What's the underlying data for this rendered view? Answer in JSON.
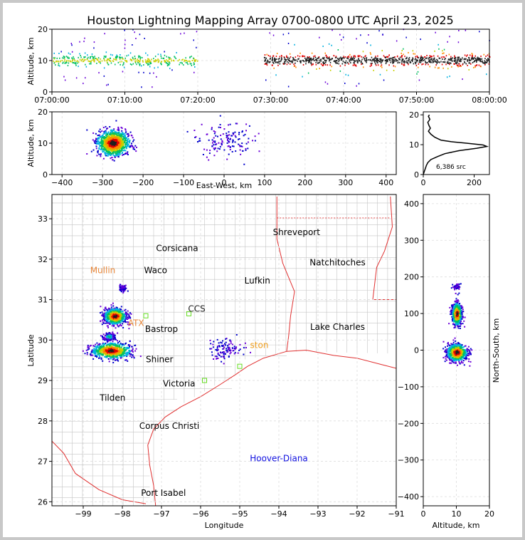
{
  "title": "Houston Lightning Mapping Array 0700-0800 UTC April 23, 2025",
  "chart_data": [
    {
      "id": "altitude_vs_time",
      "type": "scatter",
      "ylabel": "Altitude, km",
      "xlim_minutes": [
        0,
        60
      ],
      "ylim": [
        0,
        20
      ],
      "x_ticks": [
        "07:00:00",
        "07:10:00",
        "07:20:00",
        "07:30:00",
        "07:40:00",
        "07:50:00",
        "08:00:00"
      ],
      "y_ticks": [
        "0",
        "10",
        "20"
      ],
      "grid": true,
      "active_periods": [
        {
          "t_start": 0,
          "t_end": 20,
          "alt_center": 10,
          "intensity": "moderate"
        },
        {
          "t_start": 29,
          "t_end": 60,
          "alt_center": 10,
          "intensity": "high"
        }
      ]
    },
    {
      "id": "altitude_vs_eastwest",
      "type": "scatter",
      "xlabel": "East-West, km",
      "ylabel": "Altitude, km",
      "xlim": [
        -425,
        425
      ],
      "ylim": [
        0,
        20
      ],
      "x_ticks": [
        "−400",
        "−300",
        "−200",
        "−100",
        "0",
        "100",
        "200",
        "300",
        "400"
      ],
      "y_ticks": [
        "0",
        "10",
        "20"
      ],
      "grid": true,
      "clusters": [
        {
          "x_center": -275,
          "x_spread": 35,
          "alt_center": 10,
          "alt_spread": 4,
          "intensity": "high"
        },
        {
          "x_center": 5,
          "x_spread": 60,
          "alt_center": 11,
          "alt_spread": 6,
          "intensity": "low"
        }
      ]
    },
    {
      "id": "source_histogram",
      "type": "line",
      "xlim": [
        0,
        260
      ],
      "ylim": [
        0,
        21
      ],
      "x_ticks": [
        "0",
        "200"
      ],
      "y_ticks": [
        "0",
        "10",
        "20"
      ],
      "annotation": "6,386 src",
      "profile": [
        {
          "count": 0,
          "alt": 0
        },
        {
          "count": 4,
          "alt": 1
        },
        {
          "count": 8,
          "alt": 2
        },
        {
          "count": 12,
          "alt": 3
        },
        {
          "count": 18,
          "alt": 4
        },
        {
          "count": 30,
          "alt": 5
        },
        {
          "count": 55,
          "alt": 6
        },
        {
          "count": 85,
          "alt": 7
        },
        {
          "count": 140,
          "alt": 8
        },
        {
          "count": 210,
          "alt": 8.8
        },
        {
          "count": 250,
          "alt": 9.4
        },
        {
          "count": 235,
          "alt": 9.9
        },
        {
          "count": 170,
          "alt": 10.5
        },
        {
          "count": 110,
          "alt": 11
        },
        {
          "count": 70,
          "alt": 11.5
        },
        {
          "count": 45,
          "alt": 12.5
        },
        {
          "count": 30,
          "alt": 13.5
        },
        {
          "count": 20,
          "alt": 14.5
        },
        {
          "count": 28,
          "alt": 15.5
        },
        {
          "count": 22,
          "alt": 16.5
        },
        {
          "count": 18,
          "alt": 17.5
        },
        {
          "count": 26,
          "alt": 18.5
        },
        {
          "count": 20,
          "alt": 19.5
        },
        {
          "count": 24,
          "alt": 20
        }
      ]
    },
    {
      "id": "plan_view_map",
      "type": "scatter",
      "xlabel": "Longitude",
      "ylabel": "Latitude",
      "xlim": [
        -99.8,
        -91
      ],
      "ylim": [
        25.9,
        33.6
      ],
      "x_ticks": [
        "−99",
        "−98",
        "−97",
        "−96",
        "−95",
        "−94",
        "−93",
        "−92",
        "−91"
      ],
      "y_ticks": [
        "26",
        "27",
        "28",
        "29",
        "30",
        "31",
        "32",
        "33"
      ],
      "grid": true,
      "clusters": [
        {
          "lon": -98.2,
          "lat": 30.6,
          "lon_spread": 0.25,
          "lat_spread": 0.18,
          "intensity": "high"
        },
        {
          "lon": -98.3,
          "lat": 29.75,
          "lon_spread": 0.45,
          "lat_spread": 0.18,
          "intensity": "high"
        },
        {
          "lon": -98.35,
          "lat": 30.1,
          "lon_spread": 0.15,
          "lat_spread": 0.08,
          "intensity": "moderate"
        },
        {
          "lon": -98.0,
          "lat": 31.3,
          "lon_spread": 0.08,
          "lat_spread": 0.06,
          "intensity": "low"
        },
        {
          "lon": -95.4,
          "lat": 29.8,
          "lon_spread": 0.4,
          "lat_spread": 0.25,
          "intensity": "low"
        }
      ],
      "stations": [
        {
          "lon": -97.4,
          "lat": 30.6
        },
        {
          "lon": -96.3,
          "lat": 30.65
        },
        {
          "lon": -95.0,
          "lat": 29.35
        },
        {
          "lon": -95.9,
          "lat": 29.0
        }
      ]
    },
    {
      "id": "northsouth_vs_altitude",
      "type": "scatter",
      "xlabel": "Altitude, km",
      "ylabel": "North-South, km",
      "xlim": [
        0,
        20
      ],
      "ylim": [
        -425,
        425
      ],
      "x_ticks": [
        "0",
        "10",
        "20"
      ],
      "y_ticks": [
        "−400",
        "−300",
        "−200",
        "−100",
        "0",
        "100",
        "200",
        "300",
        "400"
      ],
      "grid": true,
      "clusters": [
        {
          "alt_center": 10,
          "alt_spread": 1.2,
          "ns_center": 100,
          "ns_spread": 25,
          "intensity": "high"
        },
        {
          "alt_center": 10,
          "alt_spread": 2.5,
          "ns_center": -5,
          "ns_spread": 20,
          "intensity": "high"
        },
        {
          "alt_center": 10,
          "alt_spread": 1.0,
          "ns_center": 175,
          "ns_spread": 6,
          "intensity": "low"
        }
      ]
    }
  ],
  "map_labels": [
    {
      "text": "Shreveport",
      "lon": -93.55,
      "lat": 32.6,
      "color": "#000000"
    },
    {
      "text": "Corsicana",
      "lon": -96.6,
      "lat": 32.2,
      "color": "#000000"
    },
    {
      "text": "Natchitoches",
      "lon": -92.5,
      "lat": 31.85,
      "color": "#000000"
    },
    {
      "text": "Waco",
      "lon": -97.15,
      "lat": 31.65,
      "color": "#000000"
    },
    {
      "text": "Mullin",
      "lon": -98.5,
      "lat": 31.65,
      "color": "#e8873a"
    },
    {
      "text": "Lufkin",
      "lon": -94.55,
      "lat": 31.4,
      "color": "#000000"
    },
    {
      "text": "CCS",
      "lon": -96.1,
      "lat": 30.7,
      "color": "#222222"
    },
    {
      "text": "ATX",
      "lon": -97.65,
      "lat": 30.35,
      "color": "#e8873a"
    },
    {
      "text": "Bastrop",
      "lon": -97.0,
      "lat": 30.2,
      "color": "#000000"
    },
    {
      "text": "Lake Charles",
      "lon": -92.5,
      "lat": 30.25,
      "color": "#000000"
    },
    {
      "text": "ston",
      "lon": -94.5,
      "lat": 29.8,
      "color": "#f0a020"
    },
    {
      "text": "Shiner",
      "lon": -97.05,
      "lat": 29.45,
      "color": "#000000"
    },
    {
      "text": "Victoria",
      "lon": -96.55,
      "lat": 28.85,
      "color": "#000000"
    },
    {
      "text": "Tilden",
      "lon": -98.25,
      "lat": 28.5,
      "color": "#000000"
    },
    {
      "text": "Corpus Christi",
      "lon": -96.8,
      "lat": 27.8,
      "color": "#000000"
    },
    {
      "text": "Hoover-Diana",
      "lon": -94.0,
      "lat": 27.0,
      "color": "#1010e0"
    },
    {
      "text": "Port Isabel",
      "lon": -96.95,
      "lat": 26.15,
      "color": "#000000"
    }
  ],
  "colors": {
    "density": [
      "#0000cc",
      "#6a00d8",
      "#00b0e0",
      "#00c060",
      "#c8d000",
      "#ff8c00",
      "#e00000",
      "#202020"
    ],
    "state_border": "#e03030",
    "county_line": "#c4c4c4",
    "station": "#66dd22"
  }
}
